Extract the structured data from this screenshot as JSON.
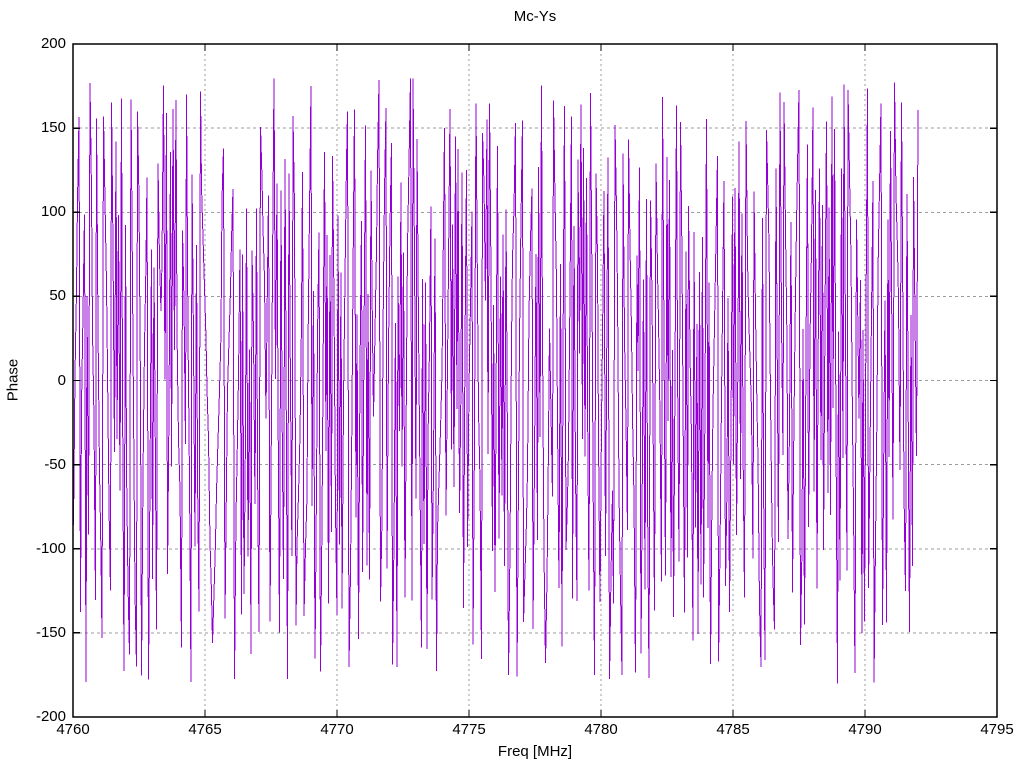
{
  "window": {
    "background": "#ffffff"
  },
  "chart_data": {
    "type": "line",
    "title": "Mc-Ys",
    "xlabel": "Freq [MHz]",
    "ylabel": "Phase",
    "xlim": [
      4760,
      4795
    ],
    "ylim": [
      -200,
      200
    ],
    "xticks": [
      4760,
      4765,
      4770,
      4775,
      4780,
      4785,
      4790,
      4795
    ],
    "yticks": [
      -200,
      -150,
      -100,
      -50,
      0,
      50,
      100,
      150,
      200
    ],
    "grid": "dotted-gray-at-every-tick",
    "legend": "none",
    "series": [
      {
        "name": "phase",
        "style": "lines",
        "color": "#9400d3",
        "x_start": 4760.02,
        "x_end": 4792.0,
        "n_points": 620,
        "y_wrap_range": [
          -180,
          180
        ],
        "description": "Densely wrapped noisy phase-vs-frequency trace; phase advances rapidly and wraps at ±180°, producing near-vertical strokes filling the band between -180 and +180 from 4760 MHz to about 4792 MHz; no data from 4792 to 4795 MHz.",
        "synthesis": {
          "kind": "wrapped-phase-ramp",
          "seed": 20240427,
          "slope_start_deg_per_sample": 150,
          "slope_jitter": 150,
          "slope_min": 50,
          "slope_max": 330,
          "direction_flip_probability": 0.08
        }
      }
    ]
  },
  "colors": {
    "line": "#9400d3",
    "grid": "#9c9c9c",
    "axis": "#000000",
    "text": "#000000",
    "background": "#ffffff"
  }
}
